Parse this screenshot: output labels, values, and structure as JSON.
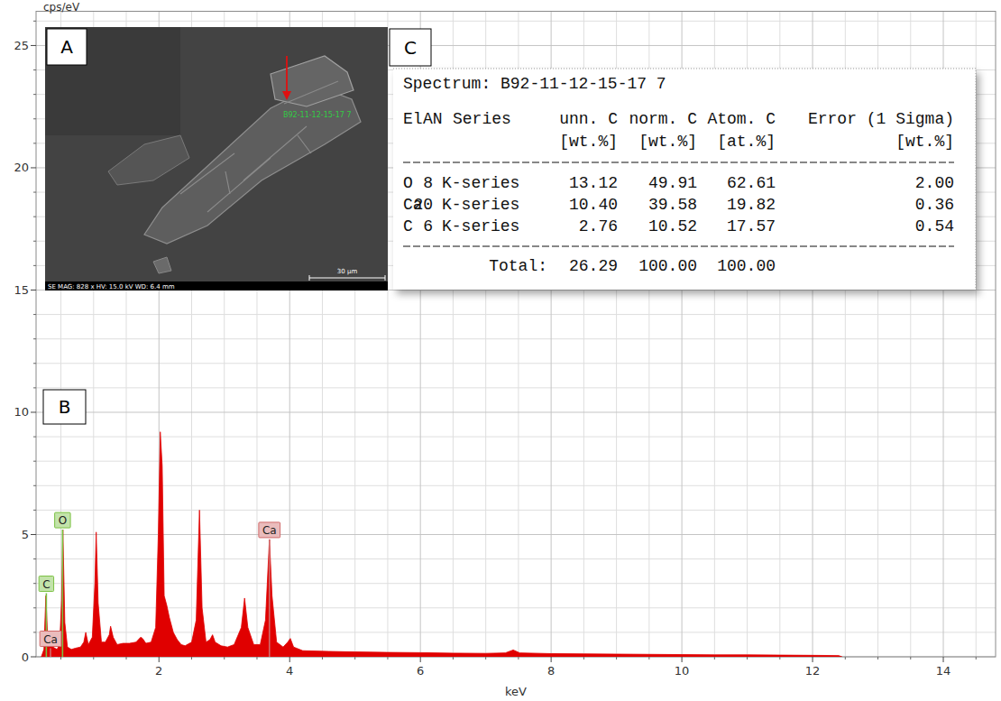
{
  "chart_data": {
    "type": "area",
    "y_label": "cps/eV",
    "x_label": "keV",
    "color": "#e00000",
    "grid": true,
    "xlim": [
      0.12,
      14.8
    ],
    "ylim": [
      0,
      26.4
    ],
    "xticks": [
      2,
      4,
      6,
      8,
      10,
      12,
      14
    ],
    "yticks": [
      0,
      5,
      10,
      15,
      20,
      25
    ],
    "x": [
      0.2,
      0.24,
      0.27,
      0.3,
      0.34,
      0.38,
      0.44,
      0.48,
      0.51,
      0.53,
      0.56,
      0.6,
      0.66,
      0.72,
      0.8,
      0.85,
      0.88,
      0.92,
      0.98,
      1.02,
      1.04,
      1.07,
      1.12,
      1.18,
      1.24,
      1.26,
      1.3,
      1.36,
      1.45,
      1.55,
      1.65,
      1.72,
      1.75,
      1.8,
      1.88,
      1.95,
      1.99,
      2.02,
      2.05,
      2.08,
      2.12,
      2.16,
      2.22,
      2.28,
      2.34,
      2.4,
      2.5,
      2.57,
      2.62,
      2.66,
      2.72,
      2.78,
      2.82,
      2.86,
      2.95,
      3.05,
      3.15,
      3.26,
      3.31,
      3.36,
      3.45,
      3.55,
      3.63,
      3.69,
      3.73,
      3.8,
      3.9,
      3.97,
      4.01,
      4.06,
      4.2,
      4.6,
      5.0,
      5.5,
      6.0,
      6.5,
      7.0,
      7.3,
      7.42,
      7.52,
      8.0,
      8.5,
      9.0,
      9.5,
      10.0,
      10.5,
      11.0,
      11.5,
      12.0,
      12.4,
      12.45
    ],
    "values": [
      0,
      0.3,
      2.5,
      0.6,
      0.9,
      0.4,
      0.3,
      0.5,
      2.3,
      5.2,
      1.4,
      0.4,
      0.3,
      0.35,
      0.4,
      0.6,
      1.0,
      0.5,
      0.8,
      3.0,
      5.1,
      2.2,
      0.6,
      0.6,
      0.9,
      1.25,
      0.8,
      0.5,
      0.55,
      0.55,
      0.6,
      0.8,
      0.75,
      0.55,
      0.6,
      1.2,
      5.0,
      9.2,
      7.8,
      2.5,
      2.1,
      1.6,
      1.0,
      0.7,
      0.5,
      0.45,
      0.6,
      1.5,
      6.0,
      2.0,
      0.6,
      0.7,
      0.9,
      0.6,
      0.45,
      0.4,
      0.5,
      1.2,
      2.4,
      1.2,
      0.5,
      0.5,
      1.5,
      4.8,
      2.5,
      0.6,
      0.4,
      0.6,
      0.75,
      0.4,
      0.25,
      0.22,
      0.2,
      0.18,
      0.17,
      0.15,
      0.14,
      0.16,
      0.28,
      0.16,
      0.13,
      0.12,
      0.11,
      0.1,
      0.09,
      0.08,
      0.08,
      0.07,
      0.06,
      0.05,
      0
    ],
    "annotations": [
      {
        "label": "C",
        "x": 0.277,
        "y": 2.6,
        "color": "#7ac142"
      },
      {
        "label": "O",
        "x": 0.525,
        "y": 5.2,
        "color": "#7ac142"
      },
      {
        "label": "Ca",
        "x": 0.341,
        "y": 0.35,
        "color": "#d06a6a"
      },
      {
        "label": "Ca",
        "x": 3.69,
        "y": 4.8,
        "color": "#d06a6a"
      }
    ]
  },
  "panels": [
    "A",
    "B",
    "C"
  ],
  "image": {
    "label": "B92-11-12-15-17 7",
    "info": "SE MAG: 828 x HV: 15.0 kV WD: 6.4 mm",
    "scale_bar": "30 µm"
  },
  "table": {
    "title": "Spectrum: B92-11-12-15-17 7",
    "columns": [
      "El",
      "AN",
      "Series",
      "unn. C",
      "norm. C",
      "Atom. C",
      "Error (1 Sigma)"
    ],
    "units": [
      "[wt.%]",
      "[wt.%]",
      "[at.%]",
      "[wt.%]"
    ],
    "rows": [
      [
        "O",
        "8",
        "K-series",
        "13.12",
        "49.91",
        "62.61",
        "2.00"
      ],
      [
        "Ca",
        "20",
        "K-series",
        "10.40",
        "39.58",
        "19.82",
        "0.36"
      ],
      [
        "C",
        "6",
        "K-series",
        "2.76",
        "10.52",
        "17.57",
        "0.54"
      ]
    ],
    "total": {
      "label": "Total:",
      "values": [
        "26.29",
        "100.00",
        "100.00"
      ]
    }
  }
}
